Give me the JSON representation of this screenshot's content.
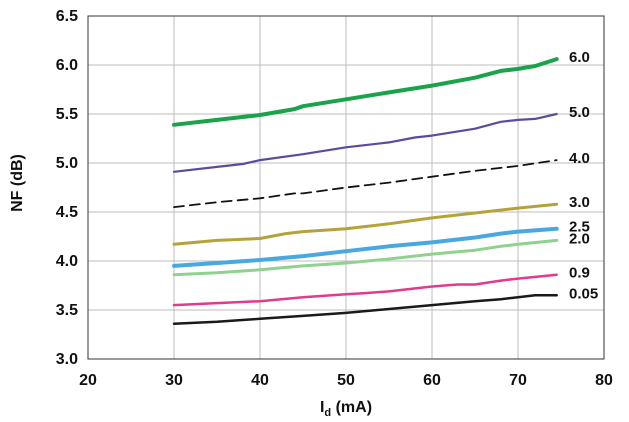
{
  "chart_data": {
    "type": "line",
    "title": "",
    "xlabel": "I",
    "xlabel_sub": "d",
    "xlabel_unit": " (mA)",
    "ylabel": "NF (dB)",
    "xlim": [
      20,
      80
    ],
    "ylim": [
      3.0,
      6.5
    ],
    "xticks": [
      20,
      30,
      40,
      50,
      60,
      70,
      80
    ],
    "yticks": [
      3.0,
      3.5,
      4.0,
      4.5,
      5.0,
      5.5,
      6.0,
      6.5
    ],
    "x_tick_labels": [
      "20",
      "30",
      "40",
      "50",
      "60",
      "70",
      "80"
    ],
    "y_tick_labels": [
      "3.0",
      "3.5",
      "4.0",
      "4.5",
      "5.0",
      "5.5",
      "6.0",
      "6.5"
    ],
    "grid": true,
    "legend": "inline labels at right end of each line",
    "series": [
      {
        "name": "6.0",
        "color": "#1aa34a",
        "width": 4,
        "dash": "",
        "points": [
          [
            30,
            5.39
          ],
          [
            35,
            5.44
          ],
          [
            40,
            5.49
          ],
          [
            44,
            5.55
          ],
          [
            45,
            5.58
          ],
          [
            50,
            5.65
          ],
          [
            55,
            5.72
          ],
          [
            60,
            5.79
          ],
          [
            65,
            5.87
          ],
          [
            68,
            5.94
          ],
          [
            70,
            5.96
          ],
          [
            72,
            5.99
          ],
          [
            74.5,
            6.06
          ]
        ]
      },
      {
        "name": "5.0",
        "color": "#5e4a9c",
        "width": 2.2,
        "dash": "",
        "points": [
          [
            30,
            4.91
          ],
          [
            35,
            4.96
          ],
          [
            38,
            4.99
          ],
          [
            40,
            5.03
          ],
          [
            45,
            5.09
          ],
          [
            50,
            5.16
          ],
          [
            55,
            5.21
          ],
          [
            58,
            5.26
          ],
          [
            60,
            5.28
          ],
          [
            65,
            5.35
          ],
          [
            68,
            5.42
          ],
          [
            70,
            5.44
          ],
          [
            72,
            5.45
          ],
          [
            74.5,
            5.5
          ]
        ]
      },
      {
        "name": "4.0",
        "color": "#111111",
        "width": 1.8,
        "dash": "10,6",
        "points": [
          [
            30,
            4.55
          ],
          [
            35,
            4.6
          ],
          [
            40,
            4.64
          ],
          [
            44,
            4.69
          ],
          [
            45,
            4.69
          ],
          [
            50,
            4.75
          ],
          [
            55,
            4.8
          ],
          [
            60,
            4.86
          ],
          [
            65,
            4.92
          ],
          [
            70,
            4.97
          ],
          [
            74.5,
            5.03
          ]
        ]
      },
      {
        "name": "3.0",
        "color": "#b5a23a",
        "width": 3,
        "dash": "",
        "points": [
          [
            30,
            4.17
          ],
          [
            35,
            4.21
          ],
          [
            40,
            4.23
          ],
          [
            43,
            4.28
          ],
          [
            45,
            4.3
          ],
          [
            50,
            4.33
          ],
          [
            55,
            4.38
          ],
          [
            60,
            4.44
          ],
          [
            65,
            4.49
          ],
          [
            70,
            4.54
          ],
          [
            74.5,
            4.58
          ]
        ]
      },
      {
        "name": "2.5",
        "color": "#4aa8e0",
        "width": 4,
        "dash": "",
        "points": [
          [
            30,
            3.95
          ],
          [
            35,
            3.98
          ],
          [
            40,
            4.01
          ],
          [
            45,
            4.05
          ],
          [
            50,
            4.1
          ],
          [
            55,
            4.15
          ],
          [
            60,
            4.19
          ],
          [
            65,
            4.24
          ],
          [
            68,
            4.28
          ],
          [
            70,
            4.3
          ],
          [
            74.5,
            4.33
          ]
        ]
      },
      {
        "name": "2.0",
        "color": "#8fd18f",
        "width": 3,
        "dash": "",
        "points": [
          [
            30,
            3.86
          ],
          [
            35,
            3.88
          ],
          [
            40,
            3.91
          ],
          [
            45,
            3.95
          ],
          [
            50,
            3.98
          ],
          [
            55,
            4.02
          ],
          [
            60,
            4.07
          ],
          [
            65,
            4.11
          ],
          [
            68,
            4.15
          ],
          [
            70,
            4.17
          ],
          [
            74.5,
            4.21
          ]
        ]
      },
      {
        "name": "0.9",
        "color": "#e23a8c",
        "width": 2.5,
        "dash": "",
        "points": [
          [
            30,
            3.55
          ],
          [
            35,
            3.57
          ],
          [
            40,
            3.59
          ],
          [
            45,
            3.63
          ],
          [
            50,
            3.66
          ],
          [
            52,
            3.67
          ],
          [
            55,
            3.69
          ],
          [
            60,
            3.74
          ],
          [
            63,
            3.76
          ],
          [
            65,
            3.76
          ],
          [
            68,
            3.8
          ],
          [
            70,
            3.82
          ],
          [
            74.5,
            3.86
          ]
        ]
      },
      {
        "name": "0.05",
        "color": "#1a1a1a",
        "width": 2.5,
        "dash": "",
        "points": [
          [
            30,
            3.36
          ],
          [
            35,
            3.38
          ],
          [
            40,
            3.41
          ],
          [
            45,
            3.44
          ],
          [
            50,
            3.47
          ],
          [
            55,
            3.51
          ],
          [
            60,
            3.55
          ],
          [
            65,
            3.59
          ],
          [
            68,
            3.61
          ],
          [
            70,
            3.63
          ],
          [
            72,
            3.65
          ],
          [
            74.5,
            3.65
          ]
        ]
      }
    ]
  }
}
